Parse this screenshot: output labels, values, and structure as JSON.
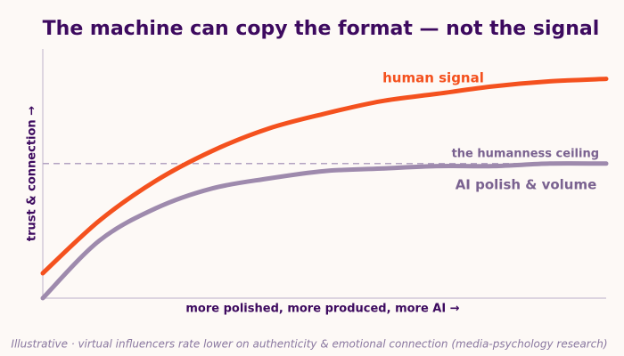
{
  "chart_data": {
    "type": "line",
    "title": "The machine can copy the format — not the signal",
    "x_label": "more polished, more produced, more AI  →",
    "y_label": "trust & connection  →",
    "footnote": "Illustrative · virtual influencers rate lower on authenticity & emotional connection (media-psychology research)",
    "x": [
      0,
      10,
      20,
      30,
      40,
      50,
      60,
      70,
      80,
      90,
      100
    ],
    "xlim": [
      0,
      100
    ],
    "ylim": [
      0,
      100
    ],
    "series": [
      {
        "name": "human signal",
        "color": "#f4511e",
        "values": [
          10,
          31,
          47,
          59,
          68,
          74,
          79,
          82,
          85,
          87,
          88
        ]
      },
      {
        "name": "AI polish & volume",
        "color": "#9e8aad",
        "values": [
          0,
          23,
          36,
          44,
          48,
          51,
          52,
          53,
          53,
          54,
          54
        ]
      }
    ],
    "reference_line": {
      "label": "the humanness ceiling",
      "value": 54,
      "color": "#b3a3c2"
    }
  }
}
